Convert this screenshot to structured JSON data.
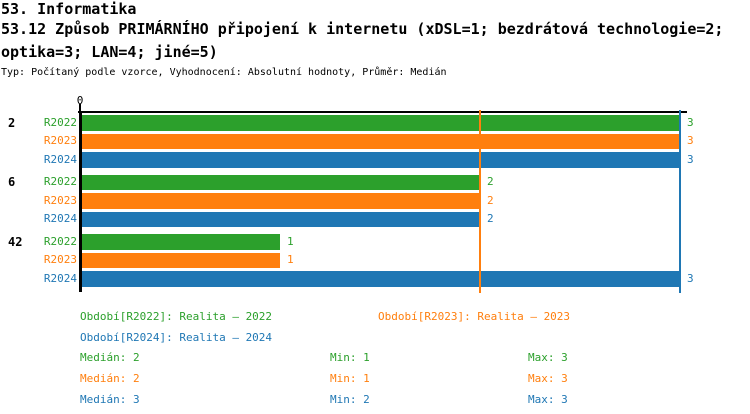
{
  "header": {
    "line1": "53. Informatika",
    "line2": "53.12 Způsob PRIMÁRNÍHO připojení k internetu (xDSL=1; bezdrátová technologie=2;",
    "line3": "optika=3; LAN=4; jiné=5)",
    "meta": "Typ: Počítaný podle vzorce, Vyhodnocení: Absolutní hodnoty, Průměr: Medián"
  },
  "chart_data": {
    "type": "bar",
    "orientation": "horizontal",
    "title": "53.12 Způsob PRIMÁRNÍHO připojení k internetu (xDSL=1; bezdrátová technologie=2; optika=3; LAN=4; jiné=5)",
    "categories": [
      "2",
      "6",
      "42"
    ],
    "series": [
      {
        "name": "R2022",
        "color": "#2ca02c",
        "values": [
          3,
          2,
          1
        ]
      },
      {
        "name": "R2023",
        "color": "#ff7f0e",
        "values": [
          3,
          2,
          1
        ]
      },
      {
        "name": "R2024",
        "color": "#1f77b4",
        "values": [
          3,
          2,
          3
        ]
      }
    ],
    "xlim": [
      0,
      3.02
    ],
    "x_tick_labels": [
      "0"
    ],
    "value_labels": true,
    "grid": false,
    "legend_position": "bottom",
    "reference_lines": [
      {
        "value": 2,
        "color": "#ff7f0e"
      },
      {
        "value": 3,
        "color": "#1f77b4"
      }
    ]
  },
  "legend": {
    "items": [
      {
        "label": "Období[R2022]: Realita – 2022",
        "color": "#2ca02c"
      },
      {
        "label": "Období[R2023]: Realita – 2023",
        "color": "#ff7f0e"
      },
      {
        "label": "Období[R2024]: Realita – 2024",
        "color": "#1f77b4"
      }
    ]
  },
  "stats": {
    "rows": [
      {
        "median": "Medián: 2",
        "min": "Min: 1",
        "max": "Max: 3",
        "color": "#2ca02c"
      },
      {
        "median": "Medián: 2",
        "min": "Min: 1",
        "max": "Max: 3",
        "color": "#ff7f0e"
      },
      {
        "median": "Medián: 3",
        "min": "Min: 2",
        "max": "Max: 3",
        "color": "#1f77b4"
      }
    ]
  }
}
